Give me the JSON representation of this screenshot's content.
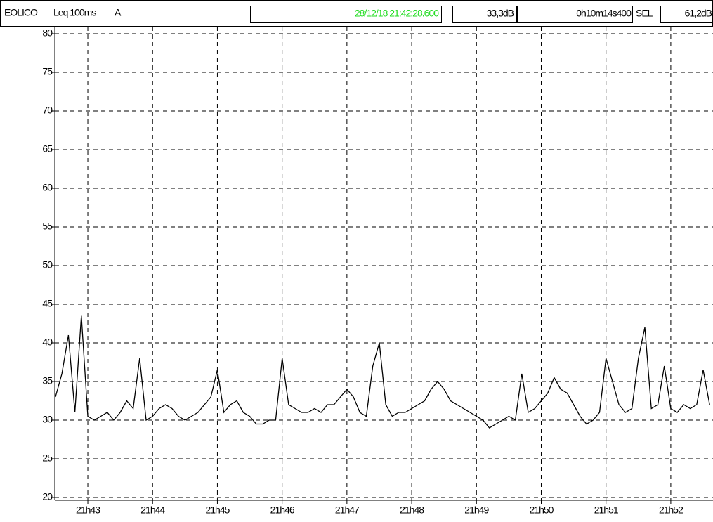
{
  "header": {
    "channel": "EOLICO",
    "mode": "Leq 100ms",
    "weighting": "A",
    "cursor_time": "28/12/18 21:42:28.600",
    "cursor_value": "33,3dB",
    "duration": "0h10m14s400",
    "sel_label": "SEL",
    "sel_value": "61,2dB"
  },
  "chart_data": {
    "type": "line",
    "color": "#000000",
    "grid": true,
    "x": [
      1302.5,
      1302.6,
      1302.7,
      1302.8,
      1302.9,
      1303.0,
      1303.1,
      1303.2,
      1303.3,
      1303.4,
      1303.5,
      1303.6,
      1303.7,
      1303.8,
      1303.9,
      1304.0,
      1304.1,
      1304.2,
      1304.3,
      1304.4,
      1304.5,
      1304.6,
      1304.7,
      1304.8,
      1304.9,
      1305.0,
      1305.1,
      1305.2,
      1305.3,
      1305.4,
      1305.5,
      1305.6,
      1305.7,
      1305.8,
      1305.9,
      1306.0,
      1306.1,
      1306.2,
      1306.3,
      1306.4,
      1306.5,
      1306.6,
      1306.7,
      1306.8,
      1306.9,
      1307.0,
      1307.1,
      1307.2,
      1307.3,
      1307.4,
      1307.5,
      1307.6,
      1307.7,
      1307.8,
      1307.9,
      1308.0,
      1308.1,
      1308.2,
      1308.3,
      1308.4,
      1308.5,
      1308.6,
      1308.7,
      1308.8,
      1308.9,
      1309.0,
      1309.1,
      1309.2,
      1309.3,
      1309.4,
      1309.5,
      1309.6,
      1309.7,
      1309.8,
      1309.9,
      1310.0,
      1310.1,
      1310.2,
      1310.3,
      1310.4,
      1310.5,
      1310.6,
      1310.7,
      1310.8,
      1310.9,
      1311.0,
      1311.1,
      1311.2,
      1311.3,
      1311.4,
      1311.5,
      1311.6,
      1311.7,
      1311.8,
      1311.9,
      1312.0,
      1312.1,
      1312.2,
      1312.3,
      1312.4,
      1312.5,
      1312.6
    ],
    "values": [
      33,
      36,
      41,
      31,
      43.5,
      30.5,
      30,
      30.5,
      31,
      30,
      31,
      32.5,
      31.5,
      38,
      30,
      30.5,
      31.5,
      32,
      31.5,
      30.5,
      30,
      30.5,
      31,
      32,
      33,
      36.5,
      31,
      32,
      32.5,
      31,
      30.5,
      29.5,
      29.5,
      30,
      30,
      38,
      32,
      31.5,
      31,
      31,
      31.5,
      31,
      32,
      32,
      33,
      34,
      33,
      31,
      30.5,
      37,
      40,
      32,
      30.5,
      31,
      31,
      31.5,
      32,
      32.5,
      34,
      35,
      34,
      32.5,
      32,
      31.5,
      31,
      30.5,
      30,
      29,
      29.5,
      30,
      30.5,
      30,
      36,
      31,
      31.5,
      32.5,
      33.5,
      35.5,
      34,
      33.5,
      32,
      30.5,
      29.5,
      30,
      31,
      38,
      35,
      32,
      31,
      31.5,
      38,
      42,
      31.5,
      32,
      37,
      31.5,
      31,
      32,
      31.5,
      32,
      36.5,
      32
    ],
    "xlim": [
      1302.49,
      1312.63
    ],
    "xticks": [
      {
        "value": 1303,
        "label": "21h43"
      },
      {
        "value": 1304,
        "label": "21h44"
      },
      {
        "value": 1305,
        "label": "21h45"
      },
      {
        "value": 1306,
        "label": "21h46"
      },
      {
        "value": 1307,
        "label": "21h47"
      },
      {
        "value": 1308,
        "label": "21h48"
      },
      {
        "value": 1309,
        "label": "21h49"
      },
      {
        "value": 1310,
        "label": "21h50"
      },
      {
        "value": 1311,
        "label": "21h51"
      },
      {
        "value": 1312,
        "label": "21h52"
      }
    ],
    "ylim": [
      20,
      80
    ],
    "yticks": [
      20,
      25,
      30,
      35,
      40,
      45,
      50,
      55,
      60,
      65,
      70,
      75,
      80
    ]
  }
}
